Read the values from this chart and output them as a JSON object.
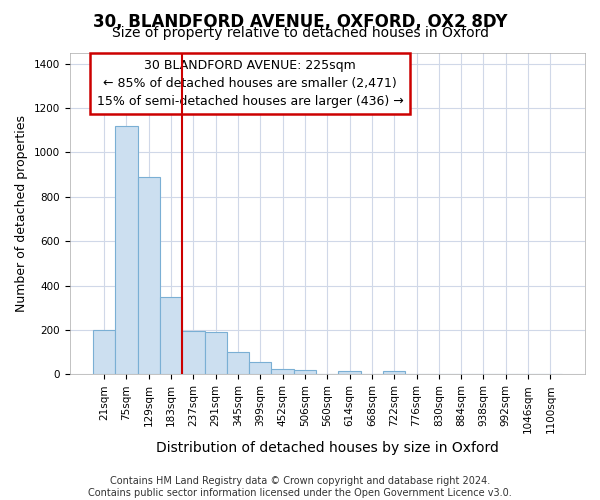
{
  "title_line1": "30, BLANDFORD AVENUE, OXFORD, OX2 8DY",
  "title_line2": "Size of property relative to detached houses in Oxford",
  "xlabel": "Distribution of detached houses by size in Oxford",
  "ylabel": "Number of detached properties",
  "categories": [
    "21sqm",
    "75sqm",
    "129sqm",
    "183sqm",
    "237sqm",
    "291sqm",
    "345sqm",
    "399sqm",
    "452sqm",
    "506sqm",
    "560sqm",
    "614sqm",
    "668sqm",
    "722sqm",
    "776sqm",
    "830sqm",
    "884sqm",
    "938sqm",
    "992sqm",
    "1046sqm",
    "1100sqm"
  ],
  "values": [
    200,
    1120,
    890,
    350,
    195,
    190,
    100,
    55,
    25,
    20,
    0,
    15,
    0,
    15,
    0,
    0,
    0,
    0,
    0,
    0,
    0
  ],
  "bar_color": "#ccdff0",
  "bar_edge_color": "#7aafd4",
  "vline_x": 4,
  "vline_color": "#cc0000",
  "annotation_text": "30 BLANDFORD AVENUE: 225sqm\n← 85% of detached houses are smaller (2,471)\n15% of semi-detached houses are larger (436) →",
  "annotation_box_facecolor": "#ffffff",
  "annotation_box_edgecolor": "#cc0000",
  "ylim_max": 1450,
  "yticks": [
    0,
    200,
    400,
    600,
    800,
    1000,
    1200,
    1400
  ],
  "fig_bg_color": "#ffffff",
  "plot_bg_color": "#ffffff",
  "grid_color": "#d0d8e8",
  "footer_text": "Contains HM Land Registry data © Crown copyright and database right 2024.\nContains public sector information licensed under the Open Government Licence v3.0.",
  "title_fontsize": 12,
  "subtitle_fontsize": 10,
  "tick_fontsize": 7.5,
  "ylabel_fontsize": 9,
  "xlabel_fontsize": 10,
  "annotation_fontsize": 9,
  "footer_fontsize": 7
}
